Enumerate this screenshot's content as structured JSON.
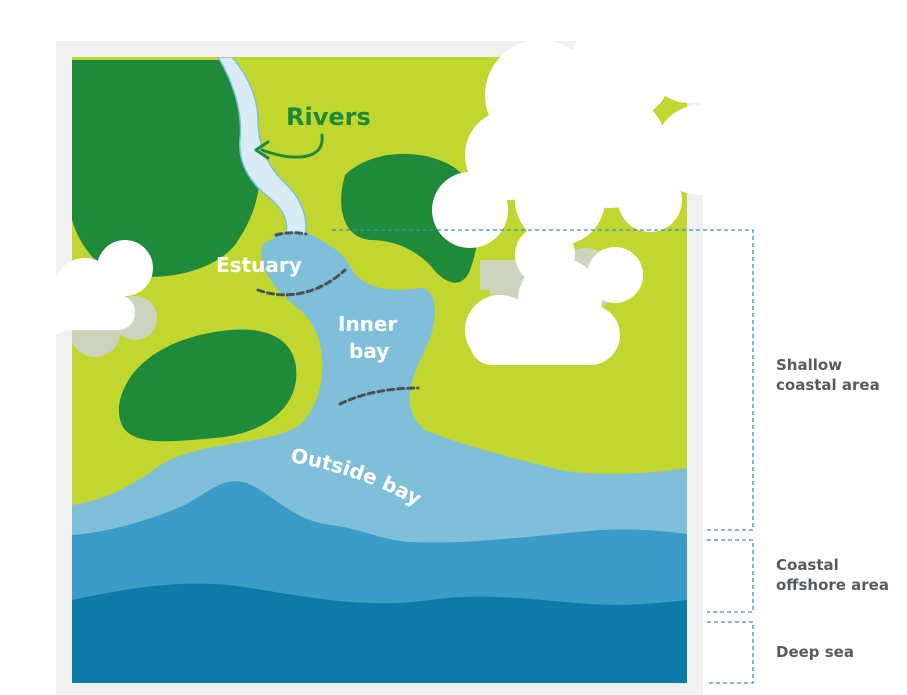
{
  "labels": {
    "rivers": "Rivers",
    "estuary": "Estuary",
    "inner_bay_line1": "Inner",
    "inner_bay_line2": "bay",
    "outside_bay": "Outside bay"
  },
  "zones": {
    "shallow": "Shallow\ncoastal area",
    "coastal_offshore": "Coastal\noffshore area",
    "deep_sea": "Deep sea"
  },
  "colors": {
    "frame": "#f0f0f0",
    "land": "#c1d72f",
    "forest": "#1f8a3a",
    "river": "#d9ecf5",
    "shallow_water": "#7fbfd9",
    "offshore_water": "#3a9cc7",
    "deep_water": "#0d7aa8",
    "cloud": "#ffffff",
    "cloud_shadow": "#cfd3d6",
    "label_green": "#1f8a3a",
    "label_white": "#ffffff",
    "zone_text": "#555c61",
    "bracket": "#3a8fbf",
    "divider": "#4a5257"
  },
  "icons": [
    "river-arrow-icon"
  ]
}
